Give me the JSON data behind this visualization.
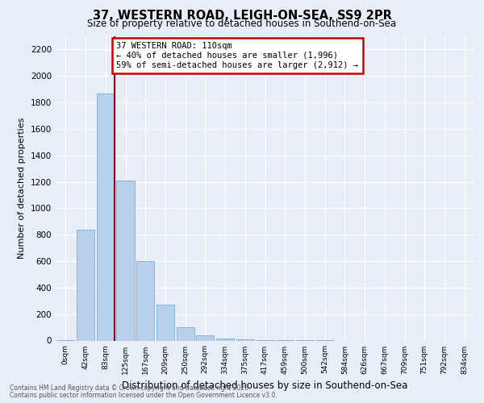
{
  "title": "37, WESTERN ROAD, LEIGH-ON-SEA, SS9 2PR",
  "subtitle": "Size of property relative to detached houses in Southend-on-Sea",
  "xlabel": "Distribution of detached houses by size in Southend-on-Sea",
  "ylabel": "Number of detached properties",
  "annotation_title": "37 WESTERN ROAD: 110sqm",
  "annotation_line1": "← 40% of detached houses are smaller (1,996)",
  "annotation_line2": "59% of semi-detached houses are larger (2,912) →",
  "bar_labels": [
    "0sqm",
    "42sqm",
    "83sqm",
    "125sqm",
    "167sqm",
    "209sqm",
    "250sqm",
    "292sqm",
    "334sqm",
    "375sqm",
    "417sqm",
    "459sqm",
    "500sqm",
    "542sqm",
    "584sqm",
    "626sqm",
    "667sqm",
    "709sqm",
    "751sqm",
    "792sqm",
    "834sqm"
  ],
  "bar_values": [
    5,
    840,
    1870,
    1210,
    600,
    270,
    100,
    40,
    15,
    8,
    4,
    2,
    1,
    1,
    0,
    0,
    0,
    0,
    0,
    0,
    0
  ],
  "bar_color": "#b8d0eb",
  "bar_edge_color": "#7bafd4",
  "vline_color": "#aa0000",
  "annotation_box_color": "#cc0000",
  "ylim": [
    0,
    2300
  ],
  "yticks": [
    0,
    200,
    400,
    600,
    800,
    1000,
    1200,
    1400,
    1600,
    1800,
    2000,
    2200
  ],
  "background_color": "#e8eef8",
  "grid_color": "#ffffff",
  "footer_line1": "Contains HM Land Registry data © Crown copyright and database right 2025.",
  "footer_line2": "Contains public sector information licensed under the Open Government Licence v3.0."
}
